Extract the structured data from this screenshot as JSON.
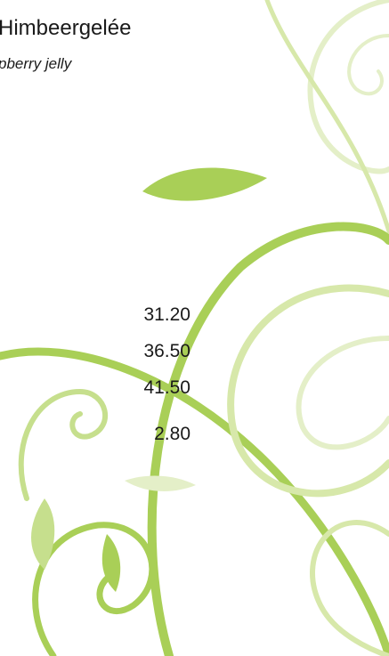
{
  "menu_item": {
    "title": "Himbeergelée",
    "subtitle": "pberry jelly",
    "prices": [
      "31.20",
      "36.50",
      "41.50",
      "2.80"
    ]
  }
}
